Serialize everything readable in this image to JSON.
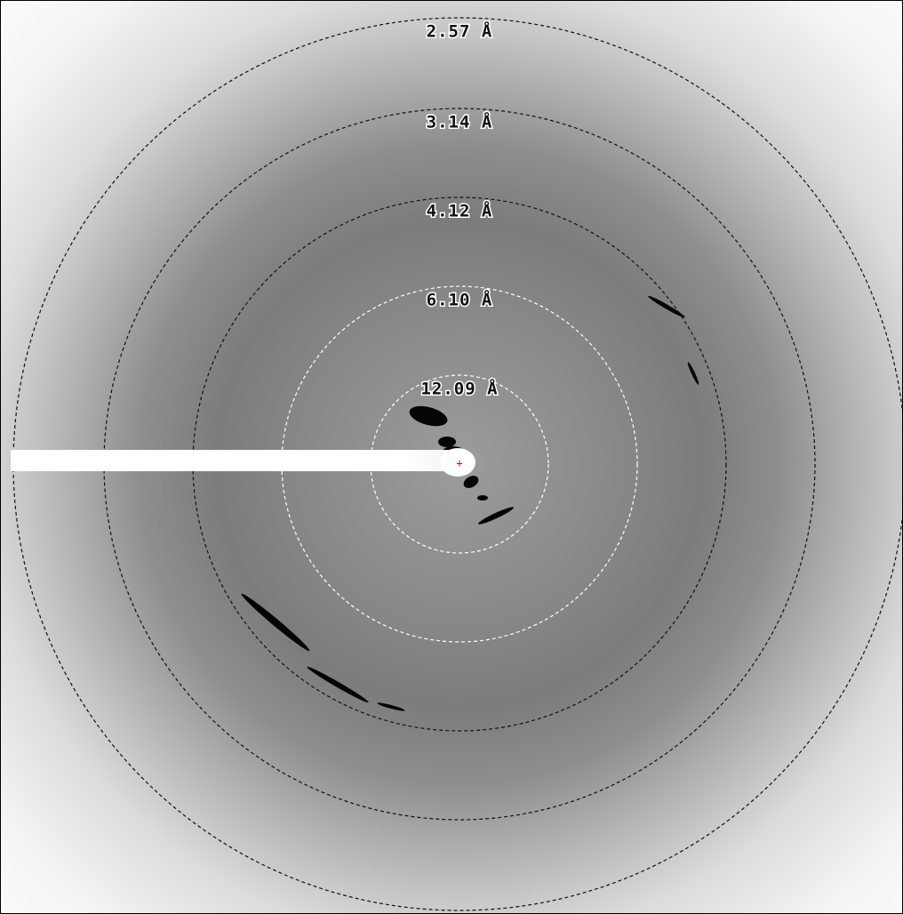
{
  "rings": [
    {
      "label": "12.09 Å"
    },
    {
      "label": "6.10 Å"
    },
    {
      "label": "4.12 Å"
    },
    {
      "label": "3.14 Å"
    },
    {
      "label": "2.57 Å"
    }
  ]
}
